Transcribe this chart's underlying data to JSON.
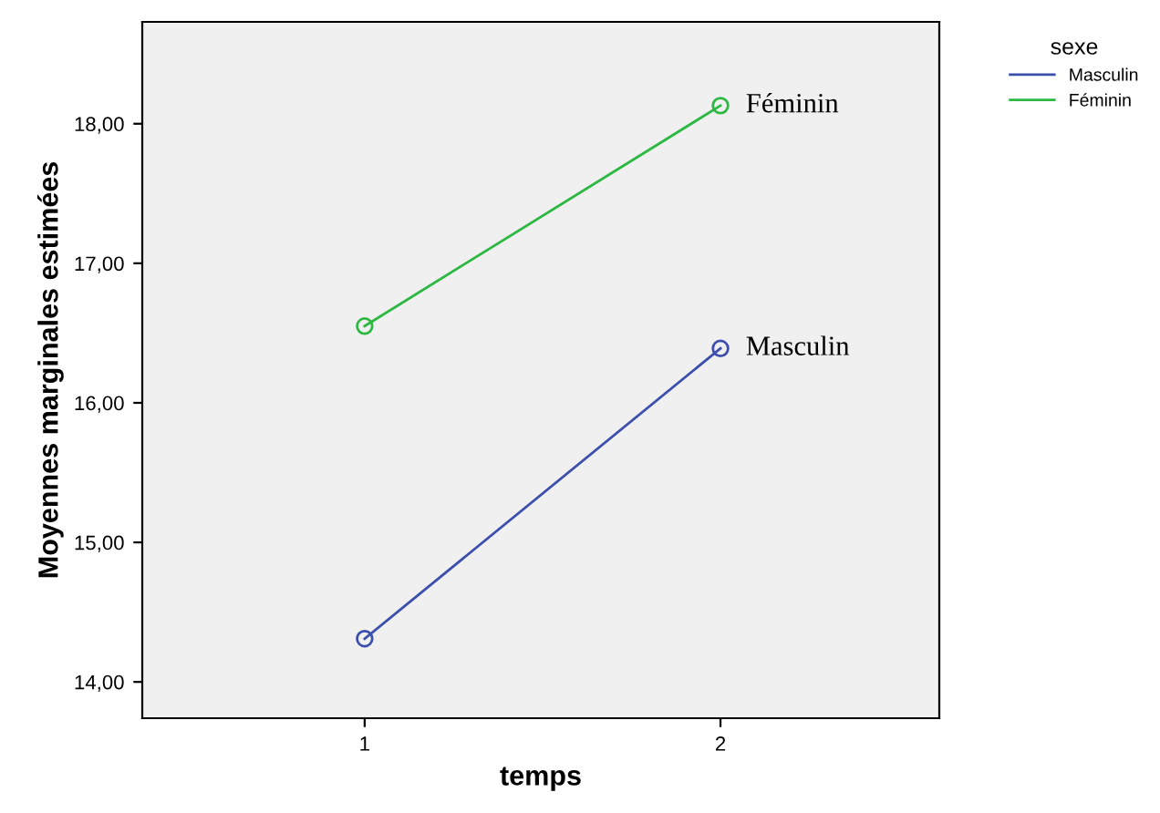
{
  "chart_data": {
    "type": "line",
    "xlabel": "temps",
    "ylabel": "Moyennes marginales estimées",
    "legend_title": "sexe",
    "x": [
      1,
      2
    ],
    "series": [
      {
        "name": "Masculin",
        "color": "#3d4fad",
        "values": [
          14.31,
          16.39
        ]
      },
      {
        "name": "Féminin",
        "color": "#2db843",
        "values": [
          16.55,
          18.13
        ]
      }
    ],
    "annotations": [
      {
        "text": "Féminin",
        "x": 2,
        "y": 18.13
      },
      {
        "text": "Masculin",
        "x": 2,
        "y": 16.39
      }
    ],
    "xlim": [
      0.375,
      2.615
    ],
    "xticks": [
      1,
      2
    ],
    "ylim": [
      13.74,
      18.73
    ],
    "yticks": [
      {
        "value": 14,
        "label": "14,00"
      },
      {
        "value": 15,
        "label": "15,00"
      },
      {
        "value": 16,
        "label": "16,00"
      },
      {
        "value": 17,
        "label": "17,00"
      },
      {
        "value": 18,
        "label": "18,00"
      }
    ],
    "grid": false,
    "legend": "top right",
    "marker": "circle",
    "line_style": "solid"
  }
}
